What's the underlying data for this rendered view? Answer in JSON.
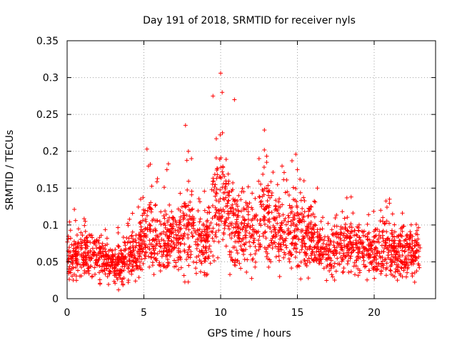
{
  "chart_data": {
    "type": "scatter",
    "title": "Day 191 of 2018, SRMTID for receiver nyls",
    "xlabel": "GPS time / hours",
    "ylabel": "SRMTID / TECUs",
    "xlim": [
      0,
      24
    ],
    "ylim": [
      0,
      0.35
    ],
    "xticks": [
      0,
      5,
      10,
      15,
      20
    ],
    "yticks": [
      0,
      0.05,
      0.1,
      0.15,
      0.2,
      0.25,
      0.3,
      0.35
    ],
    "xtick_labels": [
      "0",
      "5",
      "10",
      "15",
      "20"
    ],
    "ytick_labels": [
      "0",
      "0.05",
      "0.1",
      "0.15",
      "0.2",
      "0.25",
      "0.3",
      "0.35"
    ],
    "grid": true,
    "marker": "+",
    "series": [
      {
        "name": "SRMTID",
        "color": "#ff0000",
        "x_range": [
          0,
          23
        ],
        "baseline_profile": [
          [
            0,
            0.055
          ],
          [
            1,
            0.058
          ],
          [
            2,
            0.055
          ],
          [
            3,
            0.045
          ],
          [
            4,
            0.055
          ],
          [
            4.8,
            0.075
          ],
          [
            5.5,
            0.095
          ],
          [
            6,
            0.07
          ],
          [
            7,
            0.08
          ],
          [
            8,
            0.1
          ],
          [
            9,
            0.07
          ],
          [
            9.6,
            0.12
          ],
          [
            10,
            0.16
          ],
          [
            10.5,
            0.12
          ],
          [
            11,
            0.09
          ],
          [
            12,
            0.095
          ],
          [
            13,
            0.11
          ],
          [
            14,
            0.085
          ],
          [
            15,
            0.095
          ],
          [
            16,
            0.08
          ],
          [
            17,
            0.06
          ],
          [
            18,
            0.075
          ],
          [
            19,
            0.07
          ],
          [
            20,
            0.065
          ],
          [
            21,
            0.065
          ],
          [
            22,
            0.06
          ],
          [
            23,
            0.06
          ]
        ],
        "peaks": [
          [
            0.55,
            0.106
          ],
          [
            2.6,
            0.082
          ],
          [
            3.35,
            0.012
          ],
          [
            5.2,
            0.203
          ],
          [
            5.3,
            0.18
          ],
          [
            6.5,
            0.175
          ],
          [
            6.6,
            0.183
          ],
          [
            7.9,
            0.2
          ],
          [
            8.1,
            0.19
          ],
          [
            9.5,
            0.275
          ],
          [
            10.0,
            0.306
          ],
          [
            10.1,
            0.28
          ],
          [
            10.9,
            0.27
          ],
          [
            12.5,
            0.19
          ],
          [
            13.0,
            0.185
          ],
          [
            14.0,
            0.18
          ],
          [
            15.0,
            0.175
          ],
          [
            16.3,
            0.15
          ],
          [
            18.5,
            0.138
          ],
          [
            21.0,
            0.135
          ],
          [
            21.2,
            0.115
          ]
        ]
      }
    ]
  }
}
